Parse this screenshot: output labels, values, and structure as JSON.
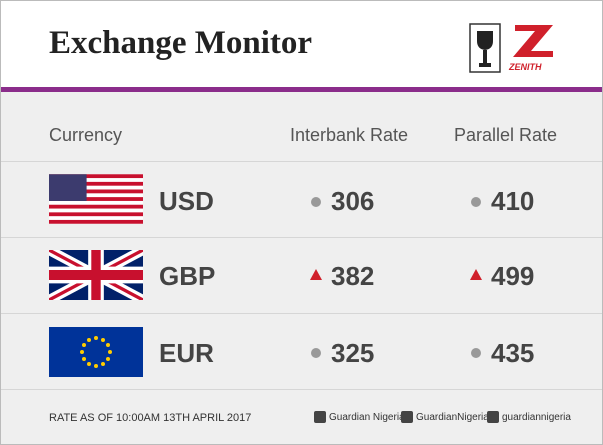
{
  "header": {
    "title": "Exchange Monitor",
    "logo_text": "ZENITH"
  },
  "table": {
    "columns": [
      "Currency",
      "Interbank Rate",
      "Parallel Rate"
    ],
    "rows": [
      [
        "USD",
        306,
        410
      ],
      [
        "GBP",
        382,
        499
      ],
      [
        "EUR",
        325,
        435
      ]
    ]
  },
  "footer": {
    "note": "RATE AS OF 10:00AM 13TH APRIL 2017",
    "social": [
      "Guardian Nigeria",
      "GuardianNigeria",
      "guardiannigeria"
    ]
  }
}
